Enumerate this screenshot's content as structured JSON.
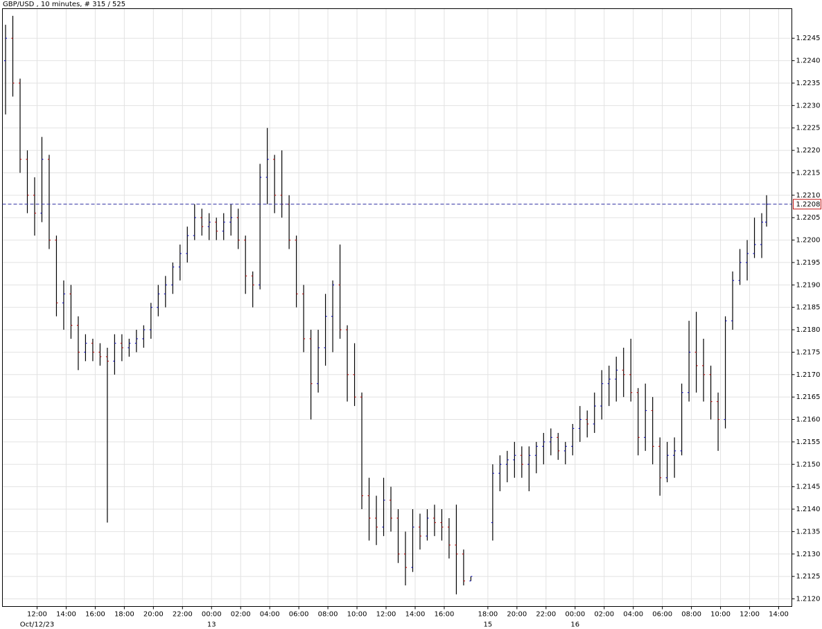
{
  "chart_data": {
    "type": "ohlc",
    "title": "GBP/USD , 10 minutes, # 315 / 525",
    "bar_color": "#000000",
    "up_color": "#1010c0",
    "down_color": "#c01010",
    "grid": true,
    "grid_color": "#e2e2e2",
    "xlim": [
      -14.29,
      311.43
    ],
    "ylim": [
      1.21183,
      1.22516
    ],
    "yticks": [
      {
        "value": 1.212,
        "label": "1.2120"
      },
      1.2125,
      {
        "value": 1.213,
        "label": "1.2130"
      },
      1.2135,
      {
        "value": 1.214,
        "label": "1.2140"
      },
      1.2145,
      {
        "value": 1.215,
        "label": "1.2150"
      },
      1.2155,
      {
        "value": 1.216,
        "label": "1.2160"
      },
      1.2165,
      {
        "value": 1.217,
        "label": "1.2170"
      },
      1.2175,
      {
        "value": 1.218,
        "label": "1.2180"
      },
      1.2185,
      {
        "value": 1.219,
        "label": "1.2190"
      },
      1.2195,
      {
        "value": 1.22,
        "label": "1.2200"
      },
      1.2205,
      {
        "value": 1.221,
        "label": "1.2210"
      },
      1.2215,
      {
        "value": 1.222,
        "label": "1.2220"
      },
      1.2225,
      {
        "value": 1.223,
        "label": "1.2230"
      },
      1.2235,
      {
        "value": 1.224,
        "label": "1.2240"
      },
      1.2245
    ],
    "xticks": [
      {
        "value": 0,
        "label": "12:00"
      },
      {
        "value": 12,
        "label": "14:00"
      },
      {
        "value": 24,
        "label": "16:00"
      },
      {
        "value": 36,
        "label": "18:00"
      },
      {
        "value": 48,
        "label": "20:00"
      },
      {
        "value": 60,
        "label": "22:00"
      },
      {
        "value": 72,
        "label": "00:00"
      },
      {
        "value": 84,
        "label": "02:00"
      },
      {
        "value": 96,
        "label": "04:00"
      },
      {
        "value": 108,
        "label": "06:00"
      },
      {
        "value": 120,
        "label": "08:00"
      },
      {
        "value": 132,
        "label": "10:00"
      },
      {
        "value": 144,
        "label": "12:00"
      },
      {
        "value": 156,
        "label": "14:00"
      },
      {
        "value": 168,
        "label": "16:00"
      },
      {
        "value": 186,
        "label": "18:00"
      },
      {
        "value": 198,
        "label": "20:00"
      },
      {
        "value": 210,
        "label": "22:00"
      },
      {
        "value": 222,
        "label": "00:00"
      },
      {
        "value": 234,
        "label": "02:00"
      },
      {
        "value": 246,
        "label": "04:00"
      },
      {
        "value": 258,
        "label": "06:00"
      },
      {
        "value": 270,
        "label": "08:00"
      },
      {
        "value": 282,
        "label": "10:00"
      },
      {
        "value": 294,
        "label": "12:00"
      },
      {
        "value": 306,
        "label": "14:00"
      }
    ],
    "date_labels": [
      {
        "value": 0,
        "label": "Oct/12/23"
      },
      {
        "value": 72,
        "label": "13"
      },
      {
        "value": 186,
        "label": "15"
      },
      {
        "value": 222,
        "label": "16"
      }
    ],
    "current_price": 1.2208,
    "current_color": "#2828a0",
    "current_box_color": "#c01010",
    "x": [
      -13,
      -10,
      -7,
      -4,
      -1,
      2,
      5,
      8,
      11,
      14,
      17,
      20,
      23,
      26,
      29,
      32,
      35,
      38,
      41,
      44,
      47,
      50,
      53,
      56,
      59,
      62,
      65,
      68,
      71,
      74,
      77,
      80,
      83,
      86,
      89,
      92,
      95,
      98,
      101,
      104,
      107,
      110,
      113,
      116,
      119,
      122,
      125,
      128,
      131,
      134,
      137,
      140,
      143,
      146,
      149,
      152,
      155,
      158,
      161,
      164,
      167,
      170,
      173,
      176,
      179,
      188,
      191,
      194,
      197,
      200,
      203,
      206,
      209,
      212,
      215,
      218,
      221,
      224,
      227,
      230,
      233,
      236,
      239,
      242,
      245,
      248,
      251,
      254,
      257,
      260,
      263,
      266,
      269,
      272,
      275,
      278,
      281,
      284,
      287,
      290,
      293,
      296,
      299,
      301
    ],
    "ohlc": [
      [
        1.224,
        1.2248,
        1.2228,
        1.2245
      ],
      [
        1.2245,
        1.225,
        1.2232,
        1.2235
      ],
      [
        1.2235,
        1.2236,
        1.2215,
        1.2218
      ],
      [
        1.2218,
        1.222,
        1.2206,
        1.221
      ],
      [
        1.221,
        1.2214,
        1.2201,
        1.2206
      ],
      [
        1.2206,
        1.2223,
        1.2204,
        1.2218
      ],
      [
        1.2218,
        1.2219,
        1.2198,
        1.22
      ],
      [
        1.22,
        1.2201,
        1.2183,
        1.2186
      ],
      [
        1.2186,
        1.2191,
        1.218,
        1.2188
      ],
      [
        1.2188,
        1.219,
        1.2178,
        1.2181
      ],
      [
        1.2181,
        1.2183,
        1.2171,
        1.2175
      ],
      [
        1.2175,
        1.2179,
        1.2173,
        1.2177
      ],
      [
        1.2177,
        1.2178,
        1.2173,
        1.2175
      ],
      [
        1.2175,
        1.2177,
        1.2172,
        1.2174
      ],
      [
        1.2174,
        1.2176,
        1.2137,
        1.2173
      ],
      [
        1.2173,
        1.2179,
        1.217,
        1.2177
      ],
      [
        1.2177,
        1.2179,
        1.2173,
        1.2176
      ],
      [
        1.2176,
        1.2178,
        1.2174,
        1.2177
      ],
      [
        1.2177,
        1.218,
        1.2175,
        1.2178
      ],
      [
        1.2178,
        1.2181,
        1.2176,
        1.218
      ],
      [
        1.218,
        1.2186,
        1.2178,
        1.2185
      ],
      [
        1.2185,
        1.219,
        1.2183,
        1.2188
      ],
      [
        1.2188,
        1.2192,
        1.2185,
        1.219
      ],
      [
        1.219,
        1.2195,
        1.2188,
        1.2194
      ],
      [
        1.2194,
        1.2199,
        1.2191,
        1.2197
      ],
      [
        1.2197,
        1.2203,
        1.2195,
        1.2201
      ],
      [
        1.2201,
        1.2208,
        1.22,
        1.2205
      ],
      [
        1.2205,
        1.2207,
        1.2201,
        1.2203
      ],
      [
        1.2203,
        1.2206,
        1.22,
        1.2204
      ],
      [
        1.2204,
        1.2205,
        1.22,
        1.2202
      ],
      [
        1.2202,
        1.2206,
        1.22,
        1.2204
      ],
      [
        1.2204,
        1.2208,
        1.2201,
        1.2205
      ],
      [
        1.2205,
        1.2207,
        1.2198,
        1.22
      ],
      [
        1.22,
        1.2201,
        1.2188,
        1.2192
      ],
      [
        1.2192,
        1.2193,
        1.2185,
        1.219
      ],
      [
        1.219,
        1.2217,
        1.2189,
        1.2214
      ],
      [
        1.2214,
        1.2225,
        1.2208,
        1.2218
      ],
      [
        1.2218,
        1.2219,
        1.2206,
        1.221
      ],
      [
        1.221,
        1.222,
        1.2205,
        1.2208
      ],
      [
        1.2208,
        1.221,
        1.2198,
        1.22
      ],
      [
        1.22,
        1.2201,
        1.2185,
        1.2188
      ],
      [
        1.2188,
        1.219,
        1.2175,
        1.2178
      ],
      [
        1.2178,
        1.218,
        1.216,
        1.2168
      ],
      [
        1.2168,
        1.218,
        1.2166,
        1.2176
      ],
      [
        1.2176,
        1.2188,
        1.2172,
        1.2183
      ],
      [
        1.2183,
        1.2191,
        1.2175,
        1.219
      ],
      [
        1.219,
        1.2199,
        1.2178,
        1.218
      ],
      [
        1.218,
        1.2181,
        1.2164,
        1.217
      ],
      [
        1.217,
        1.2177,
        1.2163,
        1.2165
      ],
      [
        1.2165,
        1.2166,
        1.214,
        1.2143
      ],
      [
        1.2143,
        1.2147,
        1.2133,
        1.2138
      ],
      [
        1.2138,
        1.2143,
        1.2132,
        1.2136
      ],
      [
        1.2136,
        1.2147,
        1.2134,
        1.2142
      ],
      [
        1.2142,
        1.2145,
        1.2135,
        1.2138
      ],
      [
        1.2138,
        1.214,
        1.2128,
        1.213
      ],
      [
        1.213,
        1.2135,
        1.2123,
        1.2127
      ],
      [
        1.2127,
        1.214,
        1.2126,
        1.2136
      ],
      [
        1.2136,
        1.2139,
        1.2131,
        1.2134
      ],
      [
        1.2134,
        1.214,
        1.2133,
        1.2138
      ],
      [
        1.2138,
        1.2141,
        1.2134,
        1.2137
      ],
      [
        1.2137,
        1.214,
        1.2133,
        1.2136
      ],
      [
        1.2136,
        1.2138,
        1.2129,
        1.2132
      ],
      [
        1.2132,
        1.2141,
        1.2121,
        1.213
      ],
      [
        1.213,
        1.2131,
        1.2123,
        1.2124
      ],
      [
        1.2124,
        1.2125,
        1.2124,
        1.2125
      ],
      [
        1.2137,
        1.215,
        1.2133,
        1.2148
      ],
      [
        1.2148,
        1.2152,
        1.2144,
        1.215
      ],
      [
        1.215,
        1.2153,
        1.2146,
        1.2151
      ],
      [
        1.2151,
        1.2155,
        1.2147,
        1.2152
      ],
      [
        1.2152,
        1.2154,
        1.2147,
        1.215
      ],
      [
        1.215,
        1.2154,
        1.2144,
        1.2152
      ],
      [
        1.2152,
        1.2155,
        1.2148,
        1.2154
      ],
      [
        1.2154,
        1.2157,
        1.215,
        1.2155
      ],
      [
        1.2155,
        1.2158,
        1.2152,
        1.2156
      ],
      [
        1.2156,
        1.2157,
        1.2151,
        1.2153
      ],
      [
        1.2153,
        1.2155,
        1.215,
        1.2154
      ],
      [
        1.2154,
        1.2159,
        1.2152,
        1.2158
      ],
      [
        1.2158,
        1.2163,
        1.2155,
        1.216
      ],
      [
        1.216,
        1.2162,
        1.2156,
        1.2159
      ],
      [
        1.2159,
        1.2166,
        1.2157,
        1.2163
      ],
      [
        1.2163,
        1.2171,
        1.216,
        1.2168
      ],
      [
        1.2168,
        1.2172,
        1.2163,
        1.2169
      ],
      [
        1.2169,
        1.2174,
        1.2164,
        1.2171
      ],
      [
        1.2171,
        1.2176,
        1.2165,
        1.217
      ],
      [
        1.217,
        1.2178,
        1.2164,
        1.2166
      ],
      [
        1.2166,
        1.2167,
        1.2152,
        1.2156
      ],
      [
        1.2156,
        1.2168,
        1.2153,
        1.2162
      ],
      [
        1.2162,
        1.2165,
        1.215,
        1.2154
      ],
      [
        1.2154,
        1.2156,
        1.2143,
        1.2147
      ],
      [
        1.2147,
        1.2155,
        1.2146,
        1.2152
      ],
      [
        1.2152,
        1.2156,
        1.2147,
        1.2153
      ],
      [
        1.2153,
        1.2168,
        1.2152,
        1.2166
      ],
      [
        1.2166,
        1.2182,
        1.2164,
        1.2175
      ],
      [
        1.2175,
        1.2184,
        1.2166,
        1.2172
      ],
      [
        1.2172,
        1.2178,
        1.2164,
        1.217
      ],
      [
        1.217,
        1.2172,
        1.216,
        1.2164
      ],
      [
        1.2164,
        1.2166,
        1.2153,
        1.216
      ],
      [
        1.216,
        1.2183,
        1.2158,
        1.2182
      ],
      [
        1.2182,
        1.2193,
        1.218,
        1.2191
      ],
      [
        1.2191,
        1.2198,
        1.219,
        1.2195
      ],
      [
        1.2195,
        1.22,
        1.2191,
        1.2197
      ],
      [
        1.2197,
        1.2205,
        1.2196,
        1.2199
      ],
      [
        1.2199,
        1.2206,
        1.2196,
        1.2204
      ],
      [
        1.2204,
        1.221,
        1.2203,
        1.2208
      ]
    ]
  }
}
